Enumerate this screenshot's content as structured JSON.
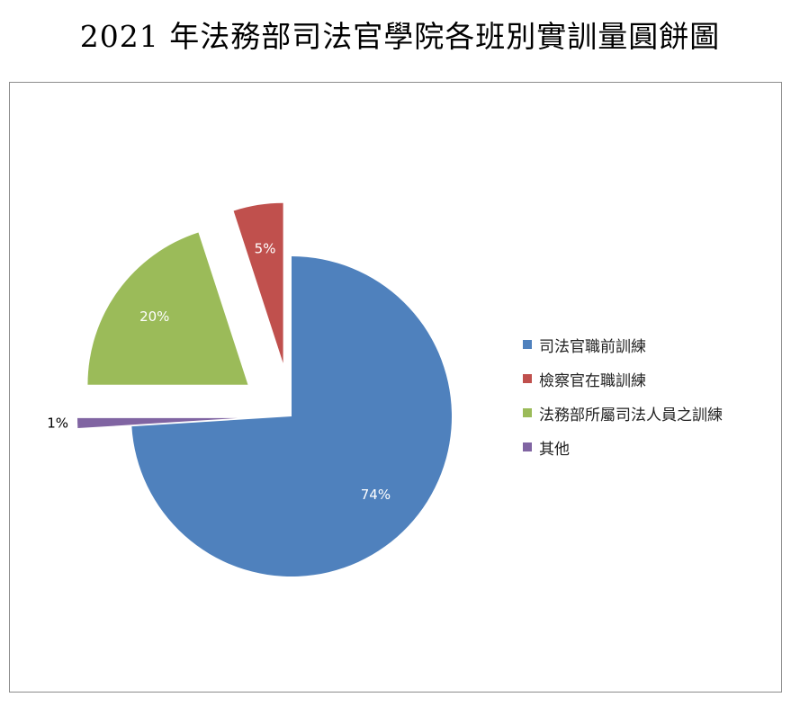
{
  "title": "2021 年法務部司法官學院各班別實訓量圓餅圖",
  "chart_data": {
    "type": "pie",
    "title": "2021 年法務部司法官學院各班別實訓量圓餅圖",
    "exploded": true,
    "slices": [
      {
        "name": "司法官職前訓練",
        "value": 74,
        "label": "74%",
        "color": "#4f81bd",
        "exploded": false,
        "label_color": "#ffffff"
      },
      {
        "name": "其他",
        "value": 1,
        "label": "1%",
        "color": "#8064a2",
        "exploded": true,
        "label_color": "#000000"
      },
      {
        "name": "法務部所屬司法人員之訓練",
        "value": 20,
        "label": "20%",
        "color": "#9bbb59",
        "exploded": true,
        "label_color": "#ffffff"
      },
      {
        "name": "檢察官在職訓練",
        "value": 5,
        "label": "5%",
        "color": "#c0504d",
        "exploded": true,
        "label_color": "#ffffff"
      }
    ],
    "legend": {
      "position": "right",
      "entries": [
        {
          "name": "司法官職前訓練",
          "color": "#4f81bd"
        },
        {
          "name": "檢察官在職訓練",
          "color": "#c0504d"
        },
        {
          "name": "法務部所屬司法人員之訓練",
          "color": "#9bbb59"
        },
        {
          "name": "其他",
          "color": "#8064a2"
        }
      ]
    }
  }
}
